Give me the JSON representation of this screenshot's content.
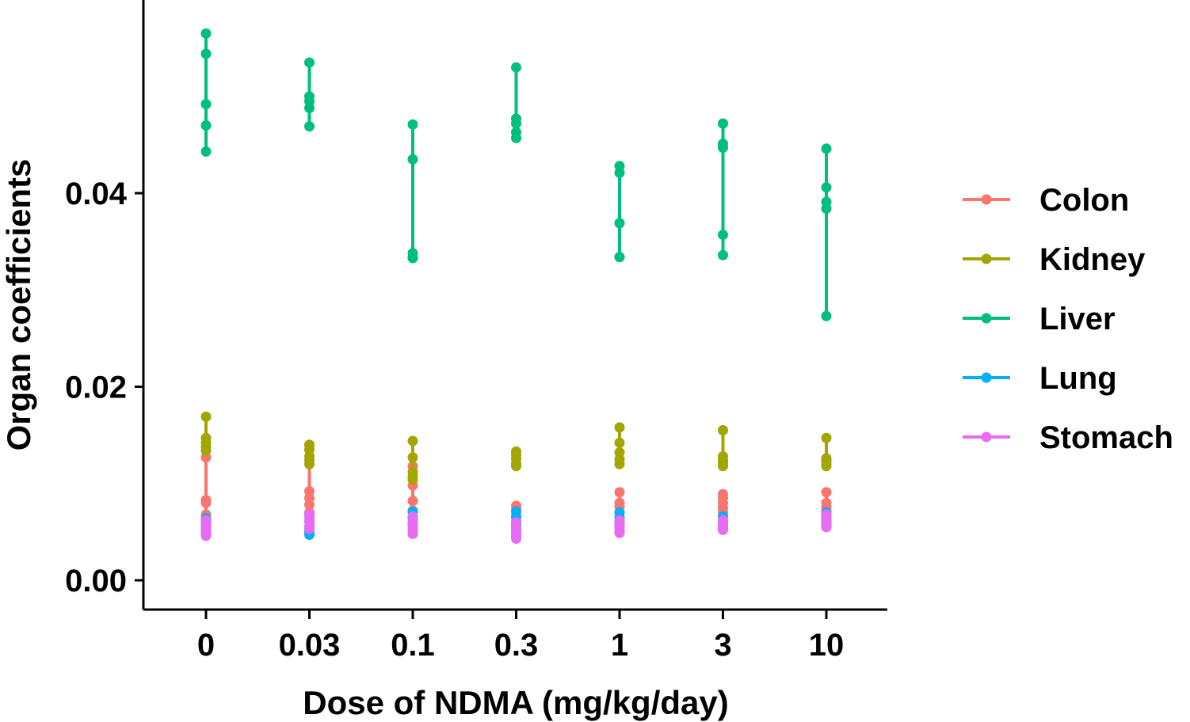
{
  "chart_data": {
    "type": "scatter",
    "xlabel": "Dose of NDMA (mg/kg/day)",
    "ylabel": "Organ coefficients",
    "categories": [
      "0",
      "0.03",
      "0.1",
      "0.3",
      "1",
      "3",
      "10"
    ],
    "y_ticks": [
      {
        "value": 0.0,
        "label": "0.00"
      },
      {
        "value": 0.02,
        "label": "0.02"
      },
      {
        "value": 0.04,
        "label": "0.04"
      }
    ],
    "ylim": [
      -0.003,
      0.059
    ],
    "grid": false,
    "legend_position": "right",
    "series": [
      {
        "name": "Colon",
        "color": "#F8766D",
        "points": [
          [
            0.0127,
            0.0083,
            0.008,
            0.0068,
            0.0062
          ],
          [
            0.014,
            0.0092,
            0.0085,
            0.0078,
            0.007
          ],
          [
            0.0118,
            0.0098,
            0.0082,
            0.0072,
            0.0065
          ],
          [
            0.0077,
            0.0073,
            0.0067,
            0.006,
            0.0055
          ],
          [
            0.0091,
            0.008,
            0.0076,
            0.007,
            0.0065
          ],
          [
            0.0089,
            0.0085,
            0.008,
            0.0075,
            0.007
          ],
          [
            0.0091,
            0.008,
            0.0076,
            0.0072,
            0.0068
          ]
        ]
      },
      {
        "name": "Kidney",
        "color": "#A3A500",
        "points": [
          [
            0.0169,
            0.0147,
            0.0142,
            0.0138,
            0.0134
          ],
          [
            0.014,
            0.0135,
            0.0128,
            0.0124,
            0.012
          ],
          [
            0.0144,
            0.0127,
            0.0112,
            0.0107,
            0.0104
          ],
          [
            0.0133,
            0.013,
            0.0126,
            0.0121,
            0.0118
          ],
          [
            0.0158,
            0.0142,
            0.0132,
            0.0125,
            0.012
          ],
          [
            0.0155,
            0.0128,
            0.0124,
            0.0121,
            0.0118
          ],
          [
            0.0147,
            0.0126,
            0.0123,
            0.012,
            0.0118
          ]
        ]
      },
      {
        "name": "Liver",
        "color": "#00BF7D",
        "points": [
          [
            0.0565,
            0.0544,
            0.0492,
            0.047,
            0.0443
          ],
          [
            0.0535,
            0.05,
            0.0495,
            0.0488,
            0.0469
          ],
          [
            0.0471,
            0.0435,
            0.0338,
            0.0333,
            0.0333
          ],
          [
            0.053,
            0.0477,
            0.0472,
            0.0463,
            0.0457
          ],
          [
            0.0428,
            0.0421,
            0.0369,
            0.0334,
            0.0334
          ],
          [
            0.0472,
            0.0451,
            0.0447,
            0.0357,
            0.0336
          ],
          [
            0.0446,
            0.0406,
            0.0391,
            0.0384,
            0.0273
          ]
        ]
      },
      {
        "name": "Lung",
        "color": "#00B0F6",
        "points": [
          [
            0.0064,
            0.006,
            0.0056,
            0.0052,
            0.0048
          ],
          [
            0.0068,
            0.0061,
            0.0055,
            0.005,
            0.0047
          ],
          [
            0.0071,
            0.0064,
            0.0058,
            0.0052,
            0.0048
          ],
          [
            0.0071,
            0.0065,
            0.0058,
            0.005,
            0.0046
          ],
          [
            0.007,
            0.0065,
            0.006,
            0.0055,
            0.0051
          ],
          [
            0.0066,
            0.0062,
            0.0059,
            0.0056,
            0.0053
          ],
          [
            0.007,
            0.0066,
            0.0062,
            0.0058,
            0.0055
          ]
        ]
      },
      {
        "name": "Stomach",
        "color": "#E76BF3",
        "points": [
          [
            0.0062,
            0.0058,
            0.0054,
            0.005,
            0.0046
          ],
          [
            0.0068,
            0.0065,
            0.006,
            0.0056,
            0.0053
          ],
          [
            0.0066,
            0.006,
            0.0056,
            0.0052,
            0.0048
          ],
          [
            0.006,
            0.0054,
            0.0049,
            0.0045,
            0.0043
          ],
          [
            0.0062,
            0.0058,
            0.0055,
            0.0052,
            0.0049
          ],
          [
            0.0062,
            0.0059,
            0.0056,
            0.0054,
            0.0052
          ],
          [
            0.0068,
            0.0064,
            0.006,
            0.0057,
            0.0055
          ]
        ]
      }
    ]
  }
}
